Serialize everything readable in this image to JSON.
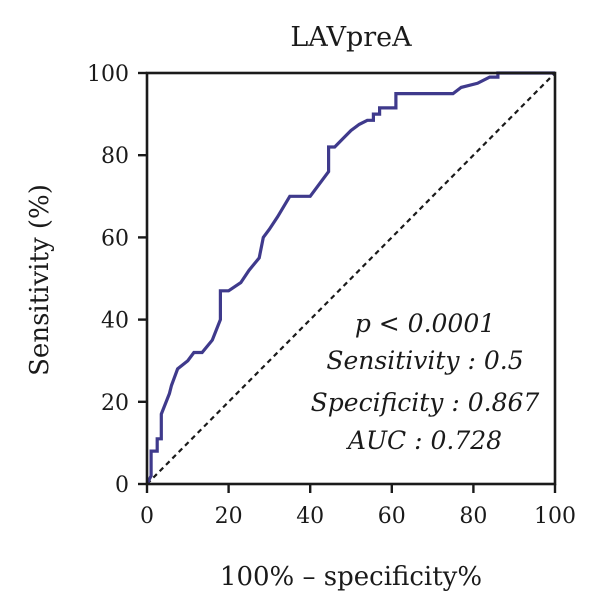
{
  "chart_data": {
    "type": "line",
    "title": "LAVpreA",
    "xlabel": "100% – specificity%",
    "ylabel": "Sensitivity (%)",
    "xlim": [
      0,
      100
    ],
    "ylim": [
      0,
      100
    ],
    "xticks": [
      "0",
      "20",
      "40",
      "60",
      "80",
      "100"
    ],
    "yticks": [
      "0",
      "20",
      "40",
      "60",
      "80",
      "100"
    ],
    "grid": false,
    "colors": {
      "roc": "#3f3a8c",
      "reference": "#1a1a1a"
    },
    "series": [
      {
        "kind": "roc",
        "x": [
          0,
          1,
          1,
          2.5,
          2.5,
          3.5,
          3.5,
          5.5,
          6,
          7.5,
          10,
          11.5,
          13.5,
          16,
          18,
          18,
          20,
          23,
          25,
          27.5,
          28.5,
          28.5,
          30,
          32,
          35,
          40,
          44.5,
          44.5,
          46,
          48,
          50,
          52,
          54,
          55.5,
          55.5,
          57,
          57,
          59,
          61,
          61,
          63,
          70,
          75,
          77,
          81,
          84,
          86,
          86,
          100
        ],
        "y": [
          0,
          2,
          8,
          8,
          11,
          11,
          17,
          22,
          24,
          28,
          30,
          32,
          32,
          35,
          40,
          47,
          47,
          49,
          52,
          55,
          60,
          60,
          62,
          65,
          70,
          70,
          76,
          82,
          82,
          84,
          86,
          87.5,
          88.5,
          88.5,
          90,
          90,
          91.5,
          91.5,
          91.5,
          95,
          95,
          95,
          95,
          96.5,
          97.5,
          99,
          99,
          100,
          100
        ]
      },
      {
        "kind": "reference",
        "x": [
          0,
          100
        ],
        "y": [
          0,
          100
        ]
      }
    ],
    "annotations": [
      "p < 0.0001",
      "Sensitivity : 0.5",
      "Specificity : 0.867",
      "AUC : 0.728"
    ]
  }
}
